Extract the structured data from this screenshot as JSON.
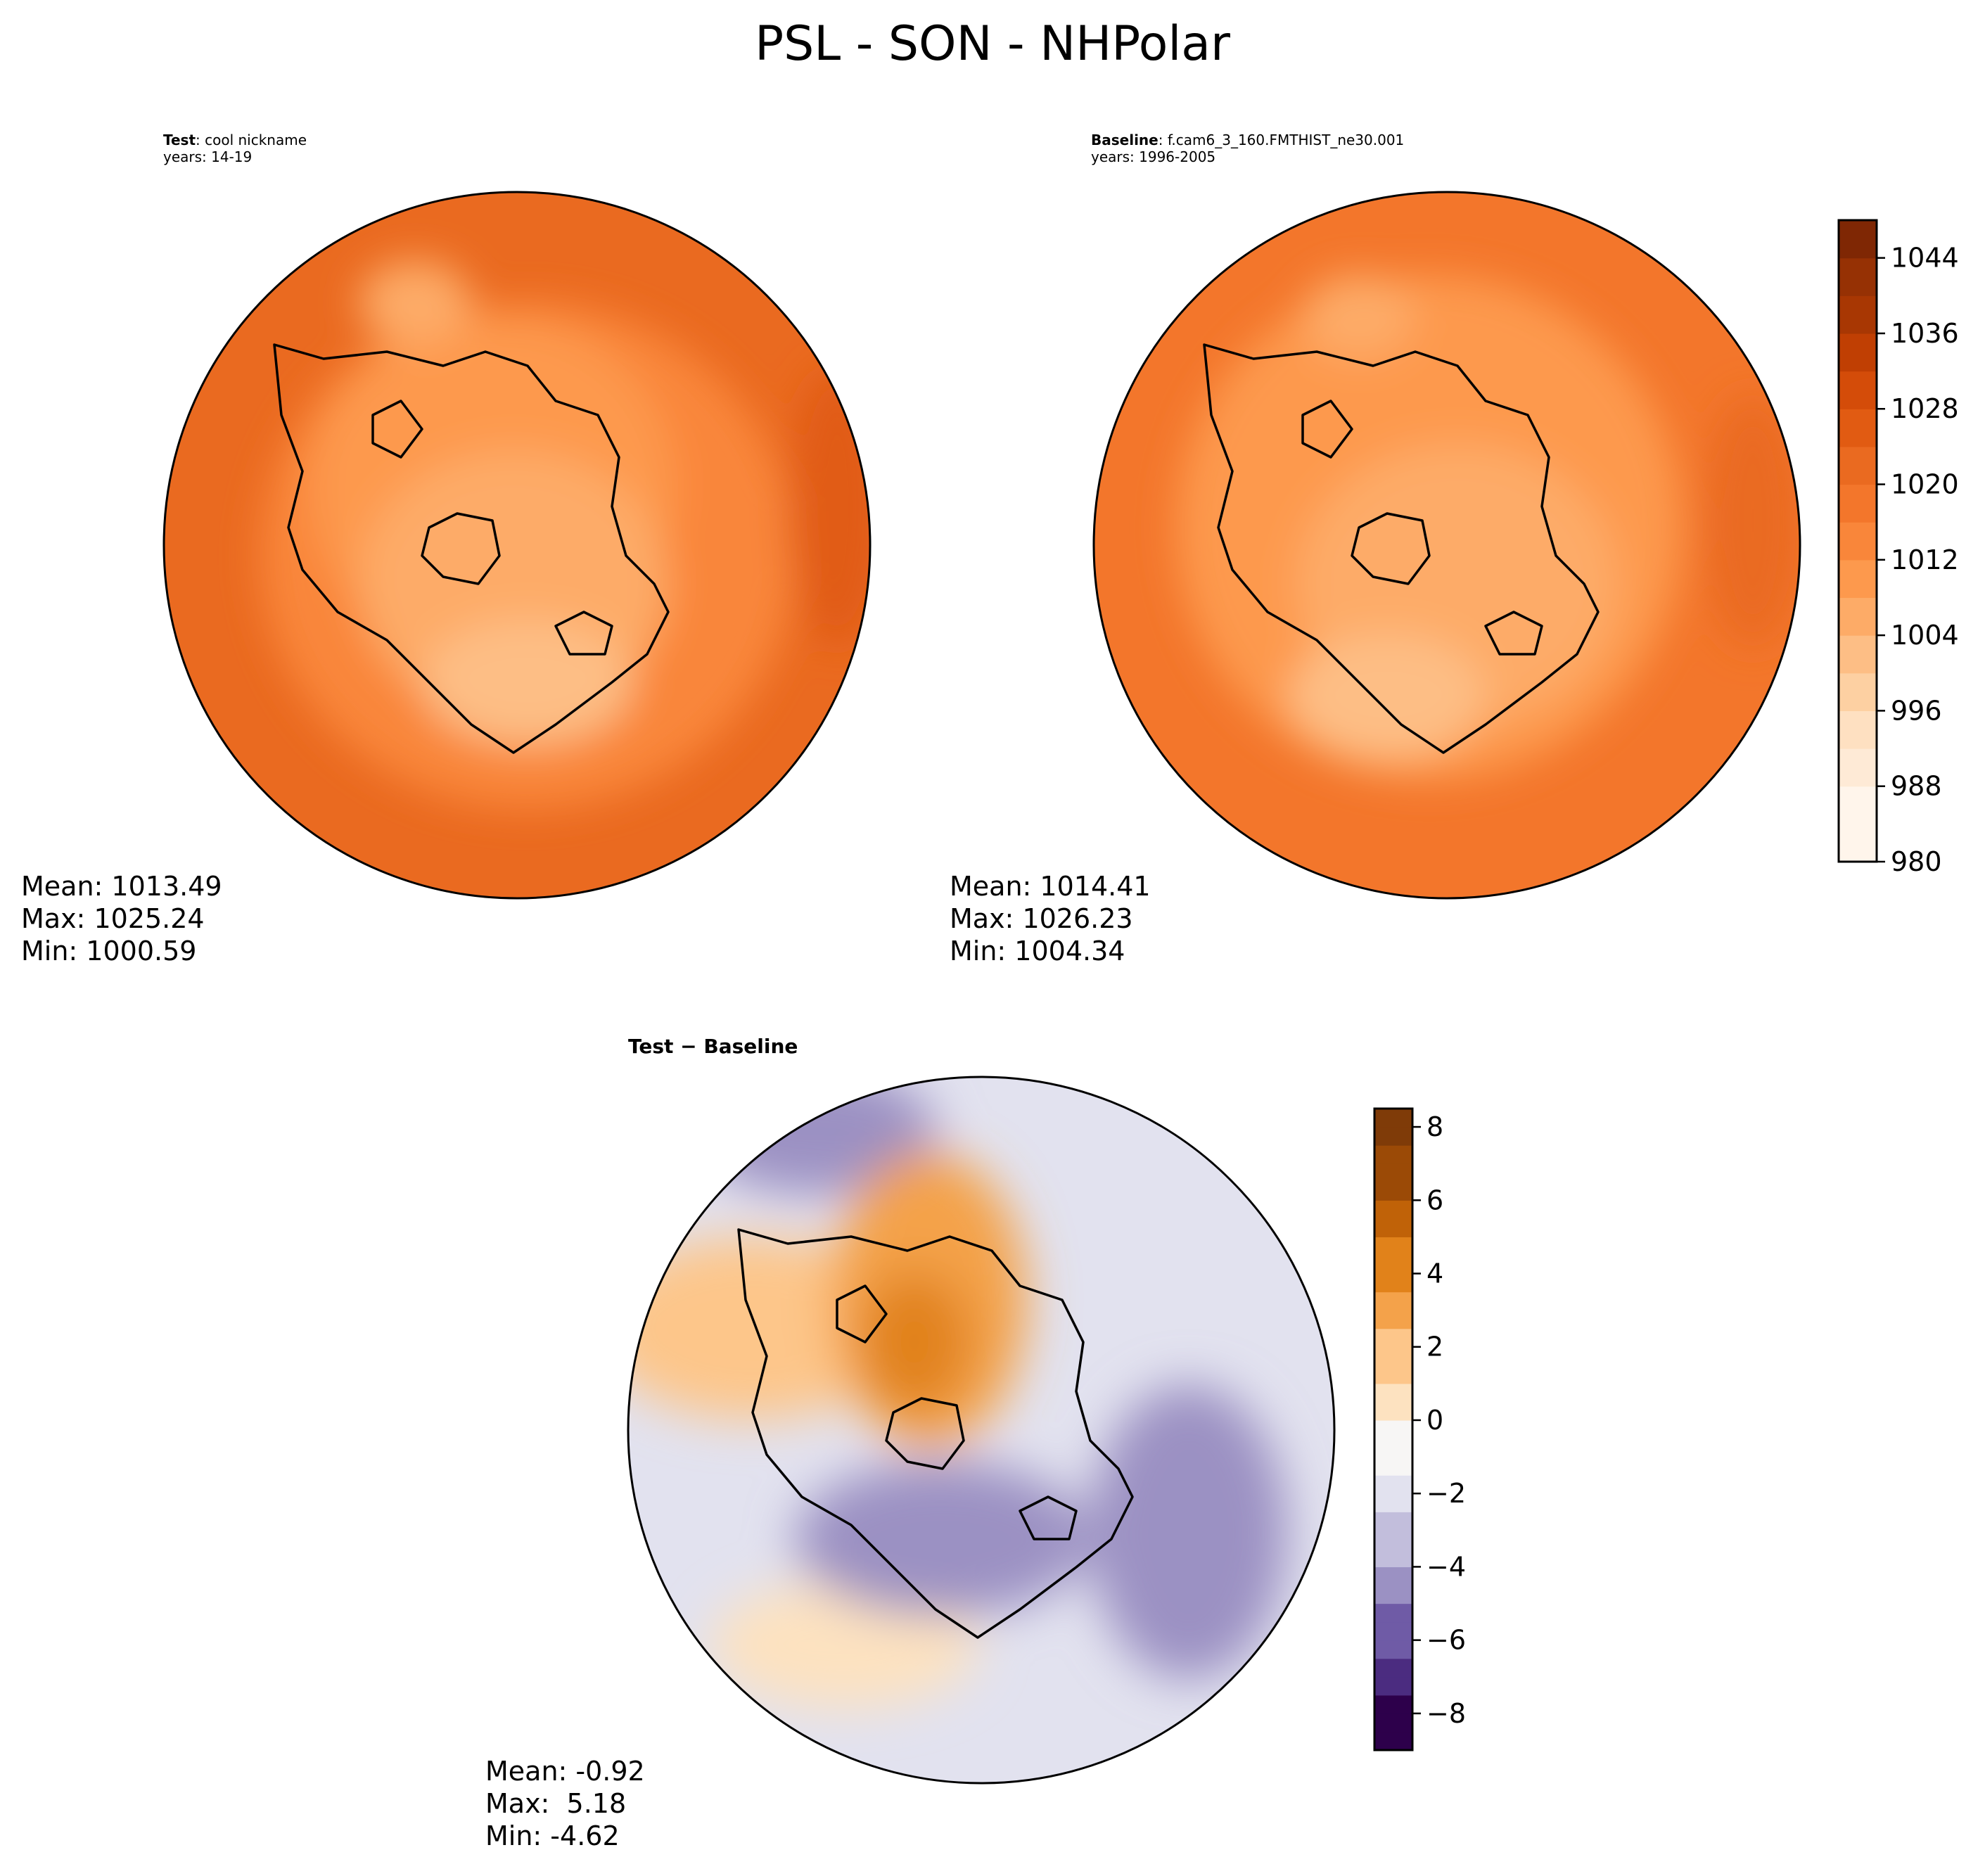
{
  "figure": {
    "title": "PSL - SON - NHPolar"
  },
  "panels": {
    "test": {
      "label_bold": "Test",
      "label_rest": ": cool nickname",
      "years": "years: 14-19",
      "stats": {
        "mean": "Mean: 1013.49",
        "max": "Max: 1025.24",
        "min": "Min: 1000.59"
      }
    },
    "baseline": {
      "label_bold": "Baseline",
      "label_rest": ": f.cam6_3_160.FMTHIST_ne30.001",
      "years": "years: 1996-2005",
      "stats": {
        "mean": "Mean: 1014.41",
        "max": "Max: 1026.23",
        "min": "Min: 1004.34"
      }
    },
    "diff": {
      "label_a": "Test",
      "label_sep": " − ",
      "label_b": "Baseline",
      "stats": {
        "mean": "Mean: -0.92",
        "max": "Max:  5.18",
        "min": "Min: -4.62"
      }
    }
  },
  "colors": {
    "oranges": [
      "#fff5eb",
      "#feead6",
      "#fee0c1",
      "#fdd0a2",
      "#fdbe85",
      "#fdab67",
      "#fd994d",
      "#f9863a",
      "#f3762b",
      "#ea6a20",
      "#e15b12",
      "#d44c09",
      "#c03f03",
      "#a83703",
      "#963104",
      "#7f2704"
    ],
    "puor": [
      "#2d004b",
      "#4b2c80",
      "#6f5ba6",
      "#9b91c3",
      "#c2bedc",
      "#e2e2ef",
      "#f7f6f5",
      "#fde2c0",
      "#fdc68a",
      "#f4a24a",
      "#e1821a",
      "#c06208",
      "#9b4a06",
      "#7f3b08"
    ],
    "outline": "#000000"
  },
  "chart_data": [
    {
      "type": "heatmap",
      "name": "test",
      "projection": "north polar stereographic",
      "variable": "PSL",
      "season": "SON",
      "mean": 1013.49,
      "max": 1025.24,
      "min": 1000.59,
      "regions": [
        {
          "region": "background",
          "value": 1016
        },
        {
          "region": "north-america-arctic",
          "value": 1012
        },
        {
          "region": "north-atlantic-band",
          "value": 1008
        },
        {
          "region": "iceland-low",
          "value": 1002
        },
        {
          "region": "north-pacific-band",
          "value": 1020
        }
      ]
    },
    {
      "type": "heatmap",
      "name": "baseline",
      "projection": "north polar stereographic",
      "variable": "PSL",
      "season": "SON",
      "mean": 1014.41,
      "max": 1026.23,
      "min": 1004.34,
      "regions": [
        {
          "region": "background",
          "value": 1016
        },
        {
          "region": "arctic-ocean",
          "value": 1012
        },
        {
          "region": "north-atlantic-band",
          "value": 1008
        },
        {
          "region": "iceland-low",
          "value": 1004
        },
        {
          "region": "east-siberia-high",
          "value": 1020
        }
      ]
    },
    {
      "type": "heatmap",
      "name": "test-minus-baseline",
      "projection": "north polar stereographic",
      "mean": -0.92,
      "max": 5.18,
      "min": -4.62,
      "regions": [
        {
          "region": "siberia-arctic-high",
          "value": 5
        },
        {
          "region": "north-america-west",
          "value": 2
        },
        {
          "region": "greenland-atlantic",
          "value": -3
        },
        {
          "region": "scandinavia-europe",
          "value": -3
        },
        {
          "region": "north-pacific",
          "value": -2
        },
        {
          "region": "atlantic-south",
          "value": 1
        }
      ]
    }
  ],
  "colorbars": {
    "top": {
      "min": 980,
      "max": 1048,
      "step": 4,
      "ticks": [
        "980",
        "988",
        "996",
        "1004",
        "1012",
        "1020",
        "1028",
        "1036",
        "1044"
      ],
      "tick_values": [
        980,
        988,
        996,
        1004,
        1012,
        1020,
        1028,
        1036,
        1044
      ]
    },
    "diff": {
      "min": -9,
      "max": 8.5,
      "ticks": [
        "−8",
        "−6",
        "−4",
        "−2",
        "0",
        "2",
        "4",
        "6",
        "8"
      ],
      "tick_values": [
        -8,
        -6,
        -4,
        -2,
        0,
        2,
        4,
        6,
        8
      ]
    }
  }
}
